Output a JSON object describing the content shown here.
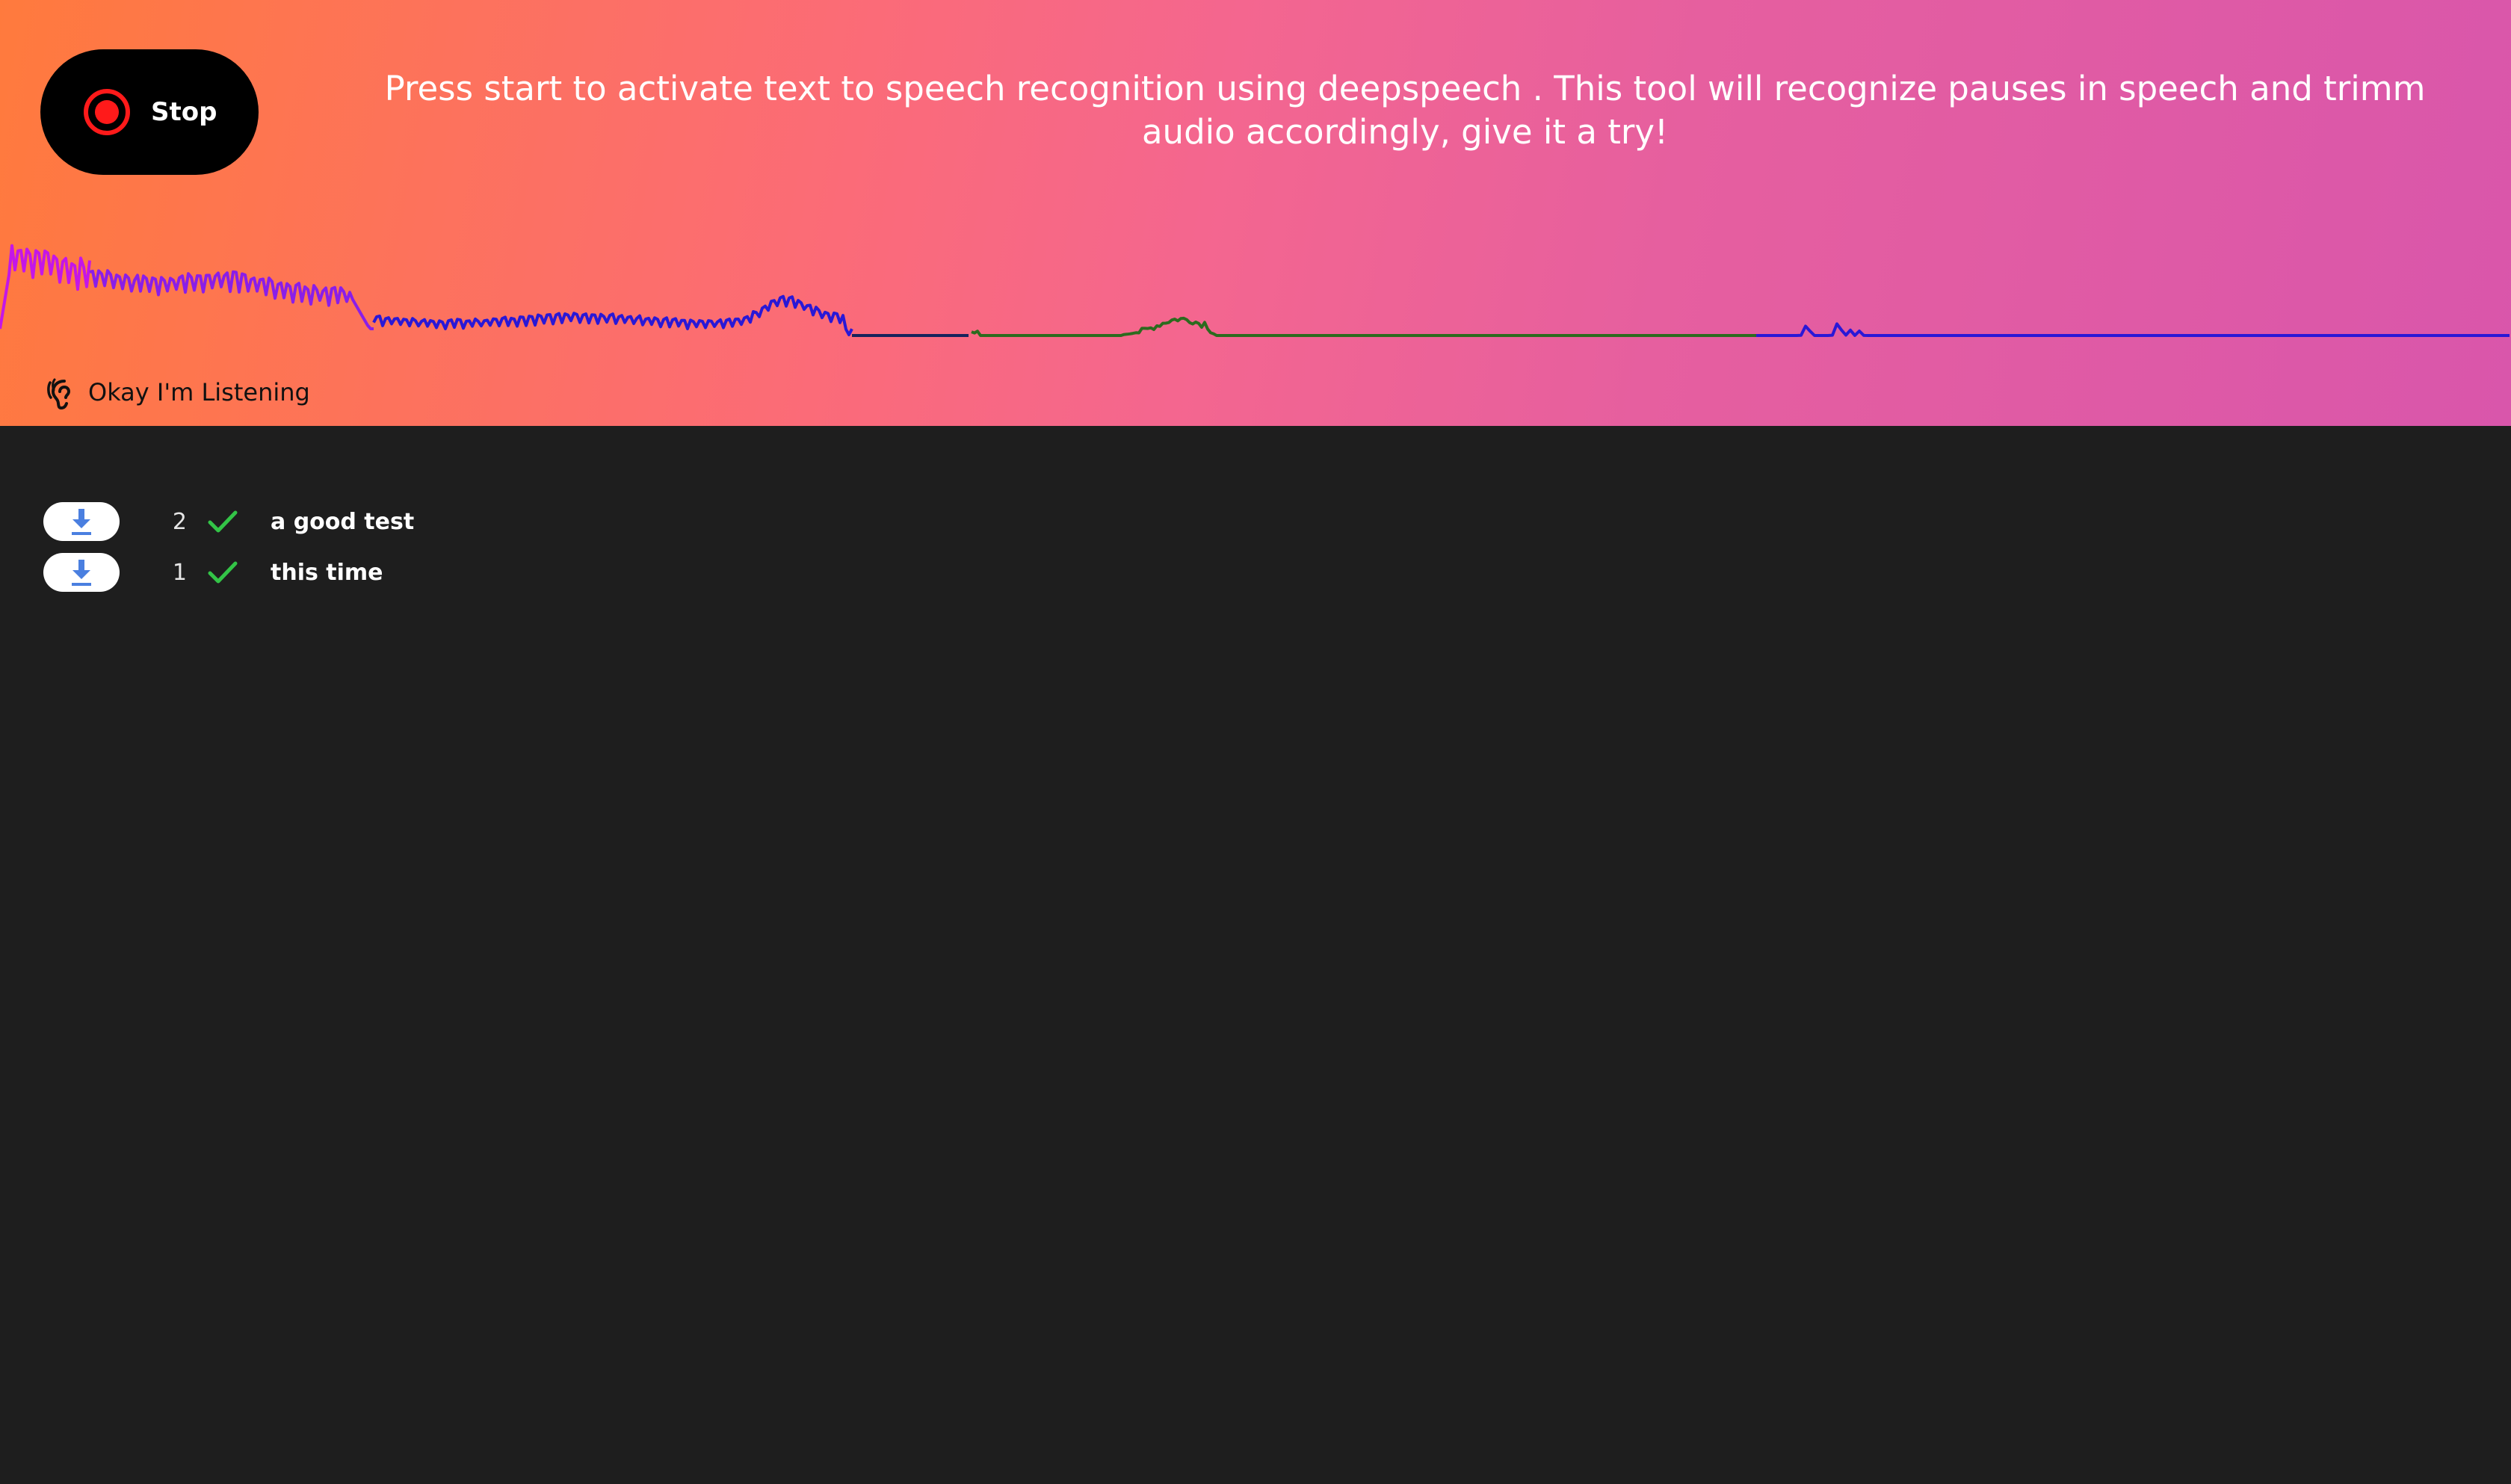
{
  "controls": {
    "record_button_label": "Stop",
    "record_icon": "record-icon"
  },
  "instructions": "Press start to activate text to speech recognition using deepspeech . This tool will recognize pauses in speech and trimm audio accordingly, give it a try!",
  "status": {
    "text": "Okay I'm Listening",
    "icon": "ear-listening-icon"
  },
  "waveform_colors": {
    "magenta": "#c416e8",
    "violet": "#8a1ee8",
    "blue": "#2a18d6",
    "navy": "#16235c",
    "green": "#2c6b1e"
  },
  "transcripts": [
    {
      "index": "2",
      "text": "a good test",
      "status_icon": "check-icon",
      "download_icon": "download-icon"
    },
    {
      "index": "1",
      "text": "this time",
      "status_icon": "check-icon",
      "download_icon": "download-icon"
    }
  ],
  "colors": {
    "background": "#1e1e1e",
    "check": "#33c447",
    "record_red": "#ff1a1a",
    "download_blue": "#4a7fe0"
  }
}
